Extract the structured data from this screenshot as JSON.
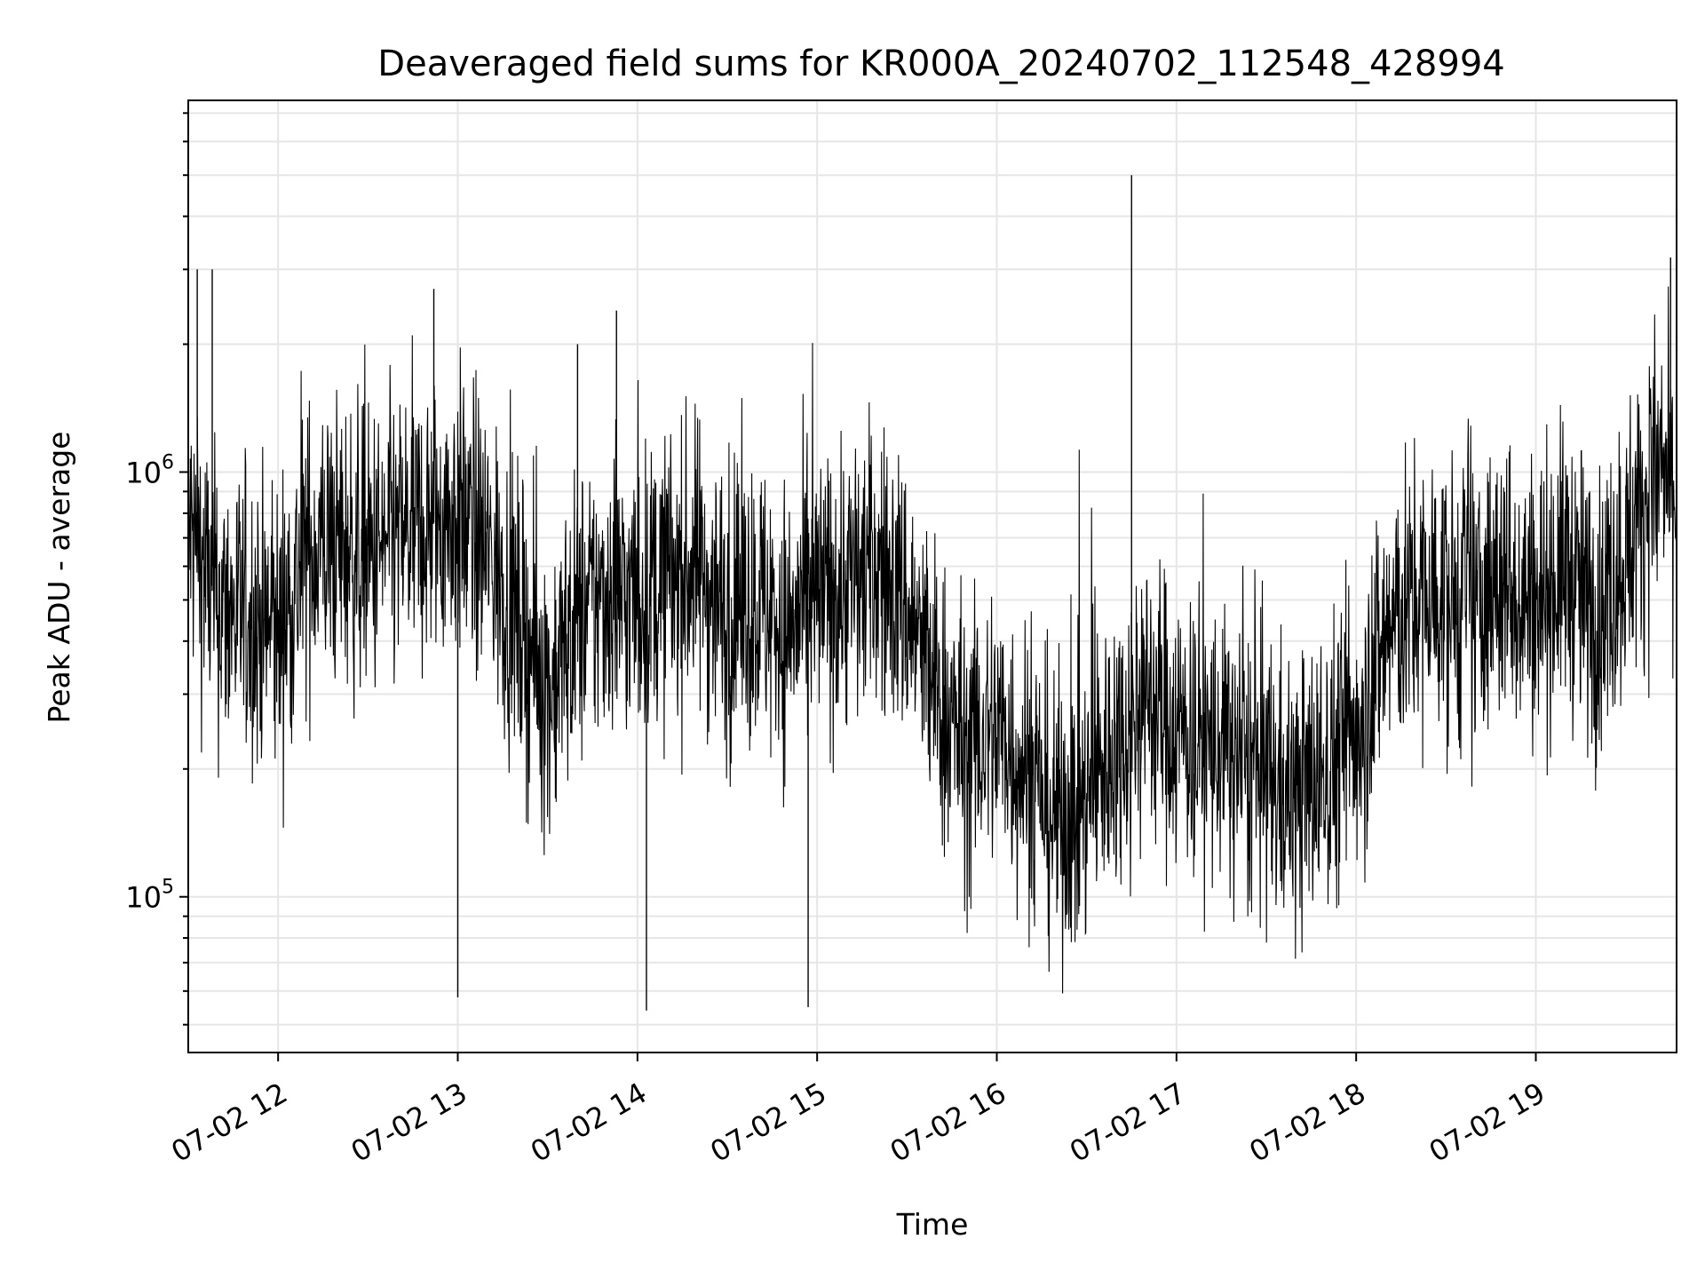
{
  "chart_data": {
    "type": "line",
    "title": "Deaveraged field sums for KR000A_20240702_112548_428994",
    "xlabel": "Time",
    "ylabel": "Peak ADU - average",
    "yscale": "log",
    "xlim": [
      "2024-07-02 11:30",
      "2024-07-02 19:47"
    ],
    "ylim": [
      43000,
      7500000
    ],
    "x_ticks": [
      "07-02 12",
      "07-02 13",
      "07-02 14",
      "07-02 15",
      "07-02 16",
      "07-02 17",
      "07-02 18",
      "07-02 19"
    ],
    "y_ticks": [
      {
        "base": "10",
        "exp": "5",
        "value": 100000
      },
      {
        "base": "10",
        "exp": "6",
        "value": 1000000
      }
    ],
    "grid": true,
    "line_color": "#000000",
    "series": [
      {
        "x": [
          "11:30",
          "11:40",
          "11:50",
          "12:00",
          "12:10",
          "12:20",
          "12:30",
          "12:40",
          "12:50",
          "13:00",
          "13:10",
          "13:20",
          "13:30",
          "13:40",
          "13:50",
          "14:00",
          "14:10",
          "14:20",
          "14:30",
          "14:40",
          "14:50",
          "15:00",
          "15:10",
          "15:20",
          "15:30",
          "15:40",
          "15:50",
          "16:00",
          "16:10",
          "16:20",
          "16:30",
          "16:40",
          "16:50",
          "17:00",
          "17:10",
          "17:20",
          "17:30",
          "17:40",
          "17:50",
          "18:00",
          "18:10",
          "18:20",
          "18:30",
          "18:40",
          "18:50",
          "19:00",
          "19:10",
          "19:20",
          "19:30",
          "19:40",
          "19:47"
        ],
        "values": [
          750000,
          480000,
          450000,
          420000,
          650000,
          680000,
          620000,
          700000,
          750000,
          800000,
          650000,
          450000,
          300000,
          450000,
          520000,
          500000,
          550000,
          600000,
          450000,
          500000,
          420000,
          500000,
          550000,
          600000,
          480000,
          300000,
          220000,
          250000,
          200000,
          150000,
          170000,
          230000,
          300000,
          250000,
          230000,
          210000,
          190000,
          170000,
          200000,
          250000,
          420000,
          500000,
          500000,
          480000,
          550000,
          500000,
          600000,
          450000,
          650000,
          1000000,
          900000
        ],
        "spikes": [
          {
            "x": "11:33",
            "value": 3000000
          },
          {
            "x": "11:38",
            "value": 3000000
          },
          {
            "x": "12:52",
            "value": 2700000
          },
          {
            "x": "13:00",
            "value": 58000
          },
          {
            "x": "13:40",
            "value": 2000000
          },
          {
            "x": "13:53",
            "value": 2400000
          },
          {
            "x": "14:03",
            "value": 54000
          },
          {
            "x": "14:57",
            "value": 55000
          },
          {
            "x": "16:45",
            "value": 5000000
          },
          {
            "x": "19:45",
            "value": 3200000
          }
        ]
      }
    ]
  }
}
